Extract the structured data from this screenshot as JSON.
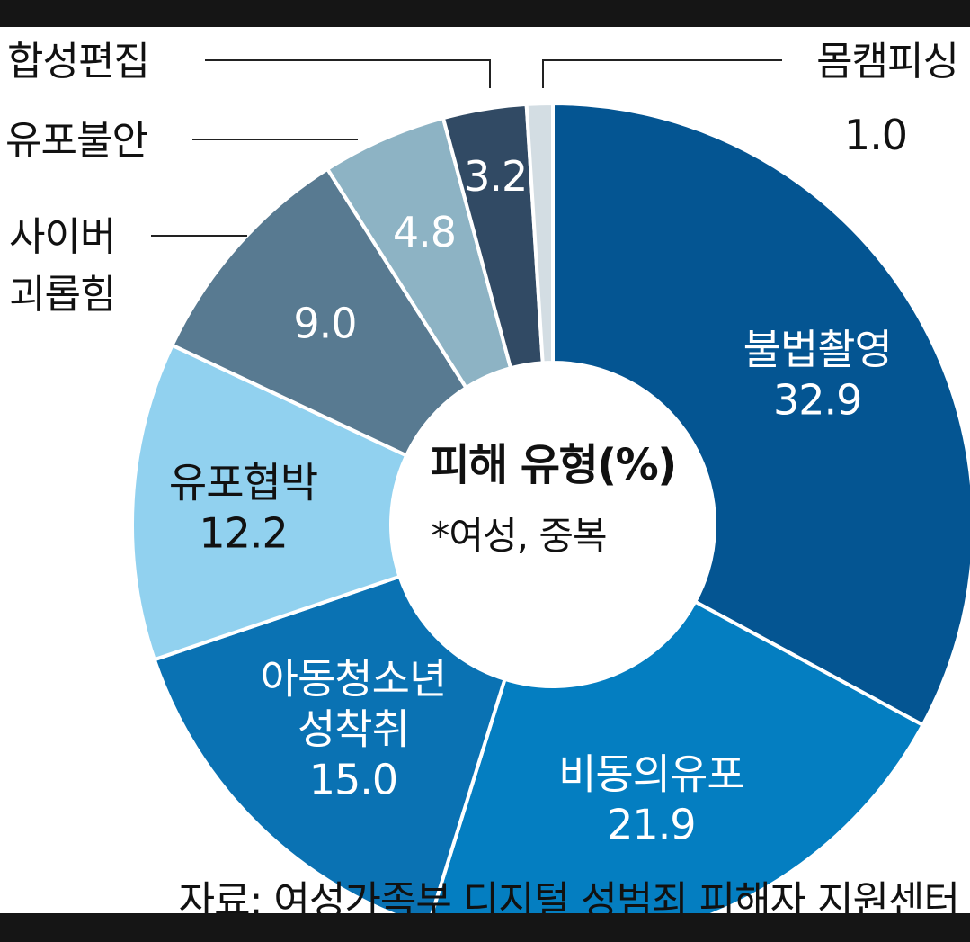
{
  "chart_data": {
    "type": "pie",
    "center_title": "피해 유형(%)",
    "center_note": "*여성, 중복",
    "source": "자료: 여성가족부 디지털 성범죄 피해자 지원센터",
    "slices": [
      {
        "label": "불법촬영",
        "value": 32.9,
        "color": "#045592",
        "text_color": "#ffffff"
      },
      {
        "label": "비동의유포",
        "value": 21.9,
        "color": "#047ec1",
        "text_color": "#ffffff"
      },
      {
        "label": "아동청소년 성착취",
        "value": 15.0,
        "color": "#0a72b3",
        "text_color": "#ffffff"
      },
      {
        "label": "유포협박",
        "value": 12.2,
        "color": "#91d1ef",
        "text_color": "#111111"
      },
      {
        "label": "사이버 괴롭힘",
        "value": 9.0,
        "color": "#587a91",
        "text_color": "#ffffff"
      },
      {
        "label": "유포불안",
        "value": 4.8,
        "color": "#8db3c4",
        "text_color": "#ffffff"
      },
      {
        "label": "합성편집",
        "value": 3.2,
        "color": "#314a64",
        "text_color": "#ffffff"
      },
      {
        "label": "몸캠피싱",
        "value": 1.0,
        "color": "#d3dde3",
        "text_color": "#111111"
      }
    ]
  }
}
